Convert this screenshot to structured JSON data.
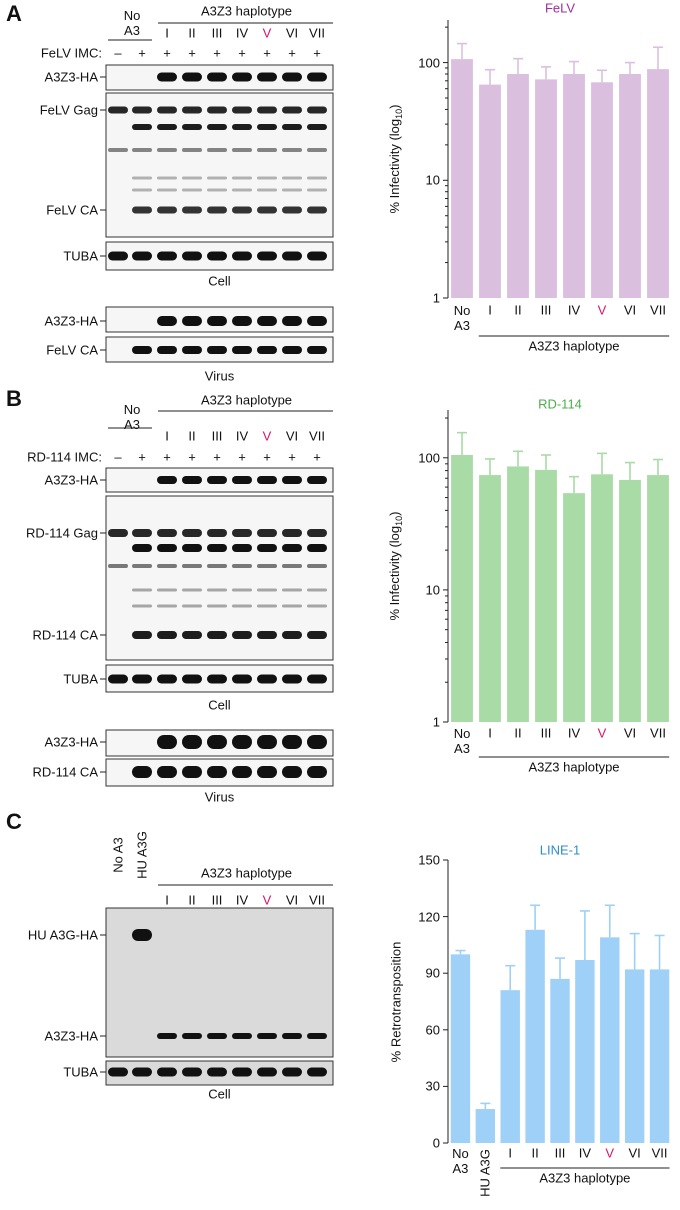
{
  "blots": [
    {
      "letter": "A",
      "controls": [
        "No A3"
      ],
      "group": "A3Z3 haplotype",
      "lanes": [
        "I",
        "II",
        "III",
        "IV",
        "V",
        "VI",
        "VII"
      ],
      "highlight": {
        "index": 4,
        "color": "#d6156c"
      },
      "treatment": "FeLV IMC:",
      "signs": [
        "–",
        "+",
        "+",
        "+",
        "+",
        "+",
        "+",
        "+",
        "+"
      ],
      "cell": {
        "bands": [
          "A3Z3-HA",
          "FeLV Gag",
          "FeLV CA",
          "TUBA"
        ],
        "caption": "Cell"
      },
      "virus": {
        "bands": [
          "A3Z3-HA",
          "FeLV CA"
        ],
        "caption": "Virus"
      }
    },
    {
      "letter": "B",
      "controls": [
        "No A3"
      ],
      "group": "A3Z3 haplotype",
      "lanes": [
        "I",
        "II",
        "III",
        "IV",
        "V",
        "VI",
        "VII"
      ],
      "highlight": {
        "index": 4,
        "color": "#d6156c"
      },
      "treatment": "RD-114 IMC:",
      "signs": [
        "–",
        "+",
        "+",
        "+",
        "+",
        "+",
        "+",
        "+",
        "+"
      ],
      "cell": {
        "bands": [
          "A3Z3-HA",
          "RD-114 Gag",
          "RD-114 CA",
          "TUBA"
        ],
        "caption": "Cell"
      },
      "virus": {
        "bands": [
          "A3Z3-HA",
          "RD-114 CA"
        ],
        "caption": "Virus"
      }
    },
    {
      "letter": "C",
      "controls": [
        "No A3",
        "HU A3G"
      ],
      "group": "A3Z3 haplotype",
      "lanes": [
        "I",
        "II",
        "III",
        "IV",
        "V",
        "VI",
        "VII"
      ],
      "highlight": {
        "index": 4,
        "color": "#d6156c"
      },
      "cell": {
        "bands": [
          "HU A3G-HA",
          "A3Z3-HA",
          "TUBA"
        ],
        "caption": "Cell"
      }
    }
  ],
  "chart_data": [
    {
      "type": "bar",
      "title": "FeLV",
      "title_color": "#9c2f9f",
      "color": "#dbbfdf",
      "ylabel": [
        "% Infectivity (log",
        "10",
        ")"
      ],
      "yscale": "log",
      "ylim": [
        1,
        230
      ],
      "yticks": [
        1,
        10,
        100
      ],
      "categories": [
        "No A3",
        "I",
        "II",
        "III",
        "IV",
        "V",
        "VI",
        "VII"
      ],
      "values": [
        107,
        65,
        80,
        72,
        80,
        68,
        80,
        88
      ],
      "errors": [
        38,
        22,
        28,
        20,
        22,
        18,
        20,
        47
      ],
      "highlight": {
        "index": 5,
        "color": "#d6156c"
      },
      "group": {
        "label": "A3Z3 haplotype",
        "from": 1
      }
    },
    {
      "type": "bar",
      "title": "RD-114",
      "title_color": "#4cae4c",
      "color": "#a9dba6",
      "ylabel": [
        "% Infectivity (log",
        "10",
        ")"
      ],
      "yscale": "log",
      "ylim": [
        1,
        230
      ],
      "yticks": [
        1,
        10,
        100
      ],
      "categories": [
        "No A3",
        "I",
        "II",
        "III",
        "IV",
        "V",
        "VI",
        "VII"
      ],
      "values": [
        105,
        74,
        86,
        81,
        54,
        75,
        68,
        74
      ],
      "errors": [
        50,
        24,
        26,
        24,
        18,
        33,
        24,
        23
      ],
      "highlight": {
        "index": 5,
        "color": "#d6156c"
      },
      "group": {
        "label": "A3Z3 haplotype",
        "from": 1
      }
    },
    {
      "type": "bar",
      "title": "LINE-1",
      "title_color": "#2f8ccc",
      "color": "#9fd0f7",
      "ylabel": "% Retrotransposition",
      "yscale": "linear",
      "ylim": [
        0,
        150
      ],
      "yticks": [
        0,
        30,
        60,
        90,
        120,
        150
      ],
      "categories": [
        "No A3",
        "HU A3G",
        "I",
        "II",
        "III",
        "IV",
        "V",
        "VI",
        "VII"
      ],
      "values": [
        100,
        18,
        81,
        113,
        87,
        97,
        109,
        92,
        92
      ],
      "errors": [
        2,
        3,
        13,
        13,
        11,
        26,
        17,
        19,
        18
      ],
      "rotate_labels": [
        1
      ],
      "highlight": {
        "index": 6,
        "color": "#d6156c"
      },
      "group": {
        "label": "A3Z3 haplotype",
        "from": 2
      }
    }
  ]
}
